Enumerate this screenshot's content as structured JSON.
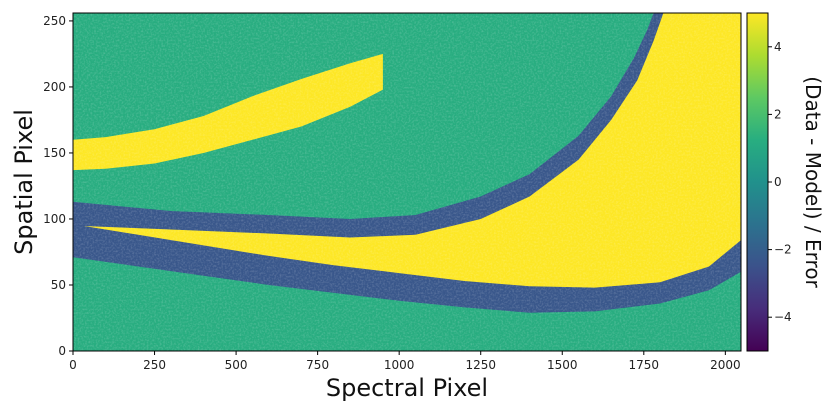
{
  "chart_data": {
    "type": "heatmap",
    "title": "",
    "xlabel": "Spectral Pixel",
    "ylabel": "Spatial Pixel",
    "xlim": [
      0,
      2048
    ],
    "ylim": [
      0,
      256
    ],
    "x_ticks": [
      0,
      250,
      500,
      750,
      1000,
      1250,
      1500,
      1750,
      2000
    ],
    "y_ticks": [
      0,
      50,
      100,
      150,
      200,
      250
    ],
    "colormap": "viridis",
    "background_level": 1.2,
    "colorbar": {
      "label": "(Data - Model) / Error",
      "range": [
        -5,
        5
      ],
      "ticks": [
        -4,
        -2,
        0,
        2,
        4
      ]
    },
    "bands": [
      {
        "name": "upper bright arc",
        "value": 5,
        "top": [
          [
            0,
            160
          ],
          [
            100,
            162
          ],
          [
            250,
            168
          ],
          [
            400,
            178
          ],
          [
            550,
            193
          ],
          [
            700,
            206
          ],
          [
            850,
            218
          ],
          [
            950,
            225
          ]
        ],
        "bottom": [
          [
            0,
            137
          ],
          [
            100,
            138
          ],
          [
            250,
            142
          ],
          [
            400,
            150
          ],
          [
            550,
            160
          ],
          [
            700,
            170
          ],
          [
            850,
            185
          ],
          [
            950,
            198
          ]
        ]
      },
      {
        "name": "bright wedge",
        "value": 5,
        "top": [
          [
            0,
            105
          ],
          [
            300,
            99
          ],
          [
            600,
            94
          ],
          [
            850,
            90
          ],
          [
            1050,
            94
          ],
          [
            1250,
            108
          ],
          [
            1400,
            125
          ],
          [
            1550,
            155
          ],
          [
            1650,
            185
          ],
          [
            1720,
            215
          ],
          [
            1760,
            240
          ],
          [
            1780,
            256
          ],
          [
            2048,
            256
          ],
          [
            2048,
            90
          ]
        ],
        "bottom": [
          [
            0,
            75
          ],
          [
            300,
            67
          ],
          [
            600,
            60
          ],
          [
            850,
            55
          ],
          [
            1050,
            50
          ],
          [
            1250,
            43
          ],
          [
            1400,
            38
          ],
          [
            1600,
            36
          ],
          [
            1800,
            42
          ],
          [
            1950,
            55
          ],
          [
            2048,
            68
          ]
        ]
      },
      {
        "name": "upper dark curve",
        "value": -2.3,
        "top": [
          [
            0,
            113
          ],
          [
            300,
            106
          ],
          [
            600,
            103
          ],
          [
            850,
            100
          ],
          [
            1050,
            103
          ],
          [
            1250,
            117
          ],
          [
            1400,
            134
          ],
          [
            1550,
            163
          ],
          [
            1650,
            193
          ],
          [
            1720,
            222
          ],
          [
            1760,
            243
          ],
          [
            1780,
            256
          ],
          [
            1810,
            256
          ],
          [
            1780,
            235
          ],
          [
            1730,
            205
          ],
          [
            1650,
            175
          ],
          [
            1550,
            145
          ],
          [
            1400,
            117
          ],
          [
            1250,
            100
          ],
          [
            1050,
            88
          ],
          [
            850,
            86
          ],
          [
            600,
            89
          ],
          [
            300,
            92
          ],
          [
            0,
            95
          ]
        ]
      },
      {
        "name": "lower dark curve",
        "value": -2.3,
        "top": [
          [
            0,
            96
          ],
          [
            200,
            88
          ],
          [
            400,
            80
          ],
          [
            600,
            72
          ],
          [
            800,
            65
          ],
          [
            1000,
            59
          ],
          [
            1200,
            53
          ],
          [
            1400,
            49
          ],
          [
            1600,
            48
          ],
          [
            1800,
            52
          ],
          [
            1950,
            64
          ],
          [
            2048,
            84
          ]
        ],
        "bottom": [
          [
            0,
            71
          ],
          [
            200,
            64
          ],
          [
            400,
            57
          ],
          [
            600,
            50
          ],
          [
            800,
            44
          ],
          [
            1000,
            38
          ],
          [
            1200,
            33
          ],
          [
            1400,
            29
          ],
          [
            1600,
            30
          ],
          [
            1800,
            36
          ],
          [
            1950,
            46
          ],
          [
            2048,
            60
          ]
        ]
      }
    ]
  }
}
